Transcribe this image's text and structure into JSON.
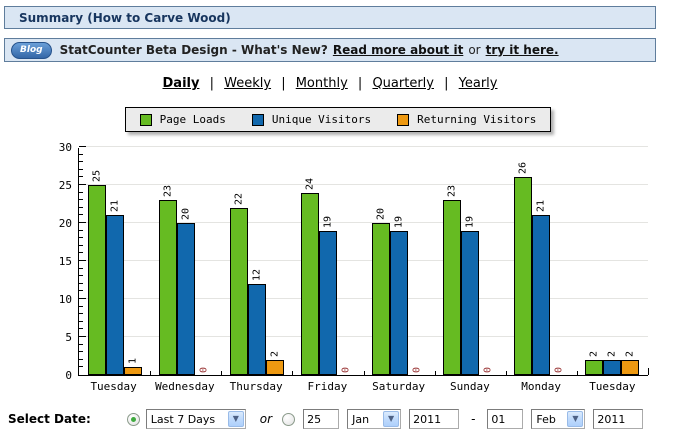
{
  "header": {
    "title": "Summary (How to Carve Wood)"
  },
  "blog_bar": {
    "badge_label": "Blog",
    "message": "StatCounter Beta Design - What's New?",
    "link_read_more": "Read more about it",
    "conjunction": "or",
    "link_try": "try it here."
  },
  "nav": {
    "separator": "|",
    "items": [
      {
        "label": "Daily",
        "active": true
      },
      {
        "label": "Weekly",
        "active": false
      },
      {
        "label": "Monthly",
        "active": false
      },
      {
        "label": "Quarterly",
        "active": false
      },
      {
        "label": "Yearly",
        "active": false
      }
    ]
  },
  "chart_data": {
    "type": "bar",
    "title": "",
    "categories": [
      "Tuesday",
      "Wednesday",
      "Thursday",
      "Friday",
      "Saturday",
      "Sunday",
      "Monday",
      "Tuesday"
    ],
    "series": [
      {
        "name": "Page Loads",
        "color": "#66BB22",
        "values": [
          25,
          23,
          22,
          24,
          20,
          23,
          26,
          2
        ]
      },
      {
        "name": "Unique Visitors",
        "color": "#1168AD",
        "values": [
          21,
          20,
          12,
          19,
          19,
          19,
          21,
          2
        ]
      },
      {
        "name": "Returning Visitors",
        "color": "#EE9911",
        "values": [
          1,
          0,
          2,
          0,
          0,
          0,
          0,
          2
        ]
      }
    ],
    "ylim": [
      0,
      30
    ],
    "yticks": [
      0,
      5,
      10,
      15,
      20,
      25,
      30
    ],
    "grid": true,
    "legend_position": "top",
    "value_labels": true,
    "value_label_color": "#000000",
    "zero_label_color": "#993333",
    "gridline_color": "#e4e4e1",
    "bar_border_color": "#000000"
  },
  "select_date": {
    "label": "Select Date:",
    "preset_radio_selected": true,
    "preset_option": "Last 7 Days",
    "conjunction": "or",
    "custom_radio_selected": false,
    "from": {
      "day": "25",
      "month": "Jan",
      "year": "2011"
    },
    "separator": "-",
    "to": {
      "day": "01",
      "month": "Feb",
      "year": "2011"
    }
  }
}
